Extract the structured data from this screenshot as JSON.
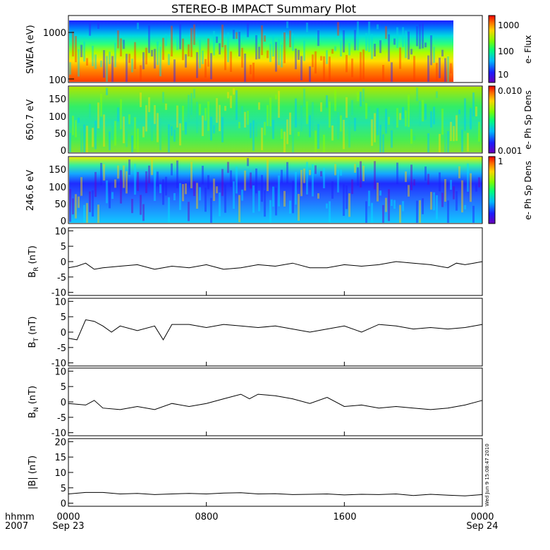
{
  "title": "STEREO-B IMPACT Summary Plot",
  "stamp": "Wed Jun  9 15:08:47 2010",
  "xaxis": {
    "row1_label": "hhmm",
    "row2_label": "2007",
    "ticks": [
      "0000",
      "0800",
      "1600",
      "0000"
    ],
    "dates": [
      "Sep 23",
      "",
      "",
      "Sep 24"
    ]
  },
  "chart_data": [
    {
      "type": "heatmap",
      "ylabel": "SWEA (eV)",
      "yscale": "log",
      "ylim": [
        100,
        2000
      ],
      "yticks": [
        "1000",
        "100"
      ],
      "colorbar": {
        "label": "e- Flux",
        "scale": "log",
        "range": [
          5,
          2000
        ],
        "ticks": [
          "1000",
          "100",
          "10"
        ]
      },
      "colormap": "rainbow (blue low, red high)",
      "data_gap_start_fraction": 0.93
    },
    {
      "type": "heatmap",
      "ylabel": "650.7 eV",
      "ylim": [
        0,
        180
      ],
      "yticks": [
        "150",
        "100",
        "50",
        "0"
      ],
      "colorbar": {
        "label": "e- Ph Sp Dens",
        "scale": "log",
        "range": [
          0.001,
          0.01
        ],
        "ticks": [
          "0.010",
          "0.001"
        ]
      }
    },
    {
      "type": "heatmap",
      "ylabel": "246.6 eV",
      "ylim": [
        0,
        180
      ],
      "yticks": [
        "150",
        "100",
        "50",
        "0"
      ],
      "colorbar": {
        "label": "e- Ph Sp Dens",
        "scale": "linear",
        "range": [
          0,
          1
        ],
        "ticks": [
          "1"
        ]
      }
    },
    {
      "type": "line",
      "ylabel": "B",
      "ylabel_sub": "R",
      "ylabel_unit": "(nT)",
      "ylim": [
        -11,
        11
      ],
      "yticks": [
        10,
        5,
        0,
        -5,
        -10
      ],
      "x": [
        0,
        0.5,
        1,
        1.5,
        2,
        3,
        4,
        5,
        6,
        7,
        8,
        9,
        10,
        11,
        12,
        13,
        14,
        15,
        16,
        17,
        18,
        19,
        20,
        21,
        22,
        22.5,
        23,
        23.5,
        24
      ],
      "values": [
        -2,
        -1.5,
        -0.5,
        -2.5,
        -2,
        -1.5,
        -1,
        -2.5,
        -1.5,
        -2,
        -1,
        -2.5,
        -2,
        -1,
        -1.5,
        -0.5,
        -2,
        -2,
        -1,
        -1.5,
        -1,
        0,
        -0.5,
        -1,
        -2,
        -0.5,
        -1,
        -0.5,
        0
      ]
    },
    {
      "type": "line",
      "ylabel": "B",
      "ylabel_sub": "T",
      "ylabel_unit": "(nT)",
      "ylim": [
        -11,
        11
      ],
      "yticks": [
        10,
        5,
        0,
        -5,
        -10
      ],
      "x": [
        0,
        0.5,
        1,
        1.5,
        2,
        2.5,
        3,
        4,
        5,
        5.5,
        6,
        7,
        8,
        9,
        10,
        11,
        12,
        13,
        14,
        15,
        16,
        17,
        18,
        19,
        20,
        21,
        22,
        23,
        24
      ],
      "values": [
        -2,
        -2.5,
        4,
        3.5,
        2,
        0,
        2,
        0.5,
        2,
        -2.5,
        2.5,
        2.5,
        1.5,
        2.5,
        2,
        1.5,
        2,
        1,
        0,
        1,
        2,
        0,
        2.5,
        2,
        1,
        1.5,
        1,
        1.5,
        2.5
      ]
    },
    {
      "type": "line",
      "ylabel": "B",
      "ylabel_sub": "N",
      "ylabel_unit": "(nT)",
      "ylim": [
        -11,
        11
      ],
      "yticks": [
        10,
        5,
        0,
        -5,
        -10
      ],
      "x": [
        0,
        1,
        1.5,
        2,
        3,
        4,
        5,
        6,
        7,
        8,
        9,
        10,
        10.5,
        11,
        12,
        13,
        14,
        15,
        16,
        17,
        18,
        19,
        20,
        21,
        22,
        23,
        24
      ],
      "values": [
        -0.5,
        -1,
        0.5,
        -2,
        -2.5,
        -1.5,
        -2.5,
        -0.5,
        -1.5,
        -0.5,
        1,
        2.5,
        1,
        2.5,
        2,
        1,
        -0.5,
        1.5,
        -1.5,
        -1,
        -2,
        -1.5,
        -2,
        -2.5,
        -2,
        -1,
        0.5
      ]
    },
    {
      "type": "line",
      "ylabel": "|B|",
      "ylabel_unit": "(nT)",
      "ylim": [
        -1,
        21
      ],
      "yticks": [
        20,
        15,
        10,
        5,
        0
      ],
      "x": [
        0,
        1,
        2,
        3,
        4,
        5,
        6,
        7,
        8,
        9,
        10,
        11,
        12,
        13,
        14,
        15,
        16,
        17,
        18,
        19,
        20,
        21,
        22,
        23,
        24
      ],
      "values": [
        3,
        3.5,
        3.5,
        3,
        3.2,
        2.8,
        3,
        3.2,
        3,
        3.3,
        3.4,
        3,
        3.1,
        2.8,
        2.9,
        3,
        2.7,
        2.9,
        2.8,
        3,
        2.5,
        2.9,
        2.6,
        2.4,
        2.8
      ]
    }
  ]
}
